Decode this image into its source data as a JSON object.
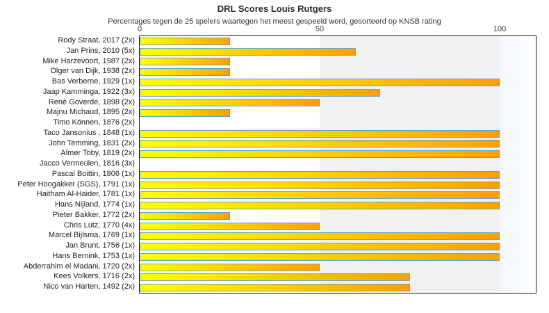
{
  "chart_data": {
    "type": "bar",
    "orientation": "horizontal",
    "title": "DRL Scores Louis Rutgers",
    "subtitle": "Percentages tegen de 25 spelers waartegen het meest gespeeld werd, gesorteerd op KNSB rating",
    "xlabel": "",
    "ylabel": "",
    "xlim": [
      0,
      100
    ],
    "x_ticks": [
      0,
      50,
      100
    ],
    "grid": "background-bands",
    "legend": "none",
    "categories": [
      "Rody Straat, 2017 (2x)",
      "Jan Prins, 2010 (5x)",
      "Mike Harzevoort, 1987 (2x)",
      "Olger van Dijk, 1938 (2x)",
      "Bas Verberne, 1929 (1x)",
      "Jaap Kamminga, 1922 (3x)",
      "René Goverde, 1898 (2x)",
      "Majnu Michaud, 1895 (2x)",
      "Timo Können, 1876 (2x)",
      "Taco Jansonius , 1848 (1x)",
      "John Temming, 1831 (2x)",
      "Almer Toby, 1819 (2x)",
      "Jacco Vermeulen, 1816 (3x)",
      "Pascal Boittin, 1806 (1x)",
      "Peter Hoogakker (SGS), 1791 (1x)",
      "Haitham Al-Haider, 1781 (1x)",
      "Hans Nijland, 1774 (1x)",
      "Pieter Bakker, 1772 (2x)",
      "Chris Lutz, 1770 (4x)",
      "Marcel Bijlsma, 1769 (1x)",
      "Jan Brunt, 1756 (1x)",
      "Hans Bernink, 1753 (1x)",
      "Abderrahim el Madani, 1720 (2x)",
      "Kees Volkers, 1716 (2x)",
      "Nico van Harten, 1492 (2x)"
    ],
    "values": [
      25,
      60,
      25,
      25,
      100,
      66.7,
      50,
      25,
      0,
      100,
      100,
      100,
      0,
      100,
      100,
      100,
      100,
      25,
      50,
      100,
      100,
      100,
      50,
      75,
      75
    ]
  },
  "colors": {
    "bar_gradient_start": "#ffff00",
    "bar_gradient_end": "#ffa000",
    "bar_border": "#63a2d2",
    "band_mid_grey": "#f1f1f1",
    "band_right_start": "#f2f7fb",
    "band_right_end": "#ffffff",
    "plot_border": "#222222",
    "text": "#333333",
    "background": "#ffffff"
  }
}
